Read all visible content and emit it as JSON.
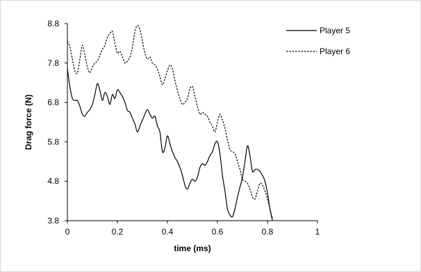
{
  "chart_data": {
    "type": "line",
    "title": "",
    "xlabel": "time (ms)",
    "ylabel": "Drag force (N)",
    "xlim": [
      0,
      1
    ],
    "ylim": [
      3.8,
      8.8
    ],
    "x_ticks": [
      "0",
      "0.2",
      "0.4",
      "0.6",
      "0.8",
      "1"
    ],
    "y_ticks": [
      "3.8",
      "4.8",
      "5.8",
      "6.8",
      "7.8",
      "8.8"
    ],
    "grid": false,
    "legend_position": "top-right",
    "series": [
      {
        "name": "Player 5",
        "style": "solid",
        "color": "#000000",
        "points": [
          [
            0.0,
            7.65
          ],
          [
            0.01,
            7.2
          ],
          [
            0.02,
            6.9
          ],
          [
            0.03,
            6.85
          ],
          [
            0.04,
            6.85
          ],
          [
            0.05,
            6.7
          ],
          [
            0.06,
            6.5
          ],
          [
            0.07,
            6.45
          ],
          [
            0.08,
            6.55
          ],
          [
            0.09,
            6.62
          ],
          [
            0.1,
            6.75
          ],
          [
            0.11,
            7.0
          ],
          [
            0.12,
            7.28
          ],
          [
            0.13,
            7.1
          ],
          [
            0.14,
            6.85
          ],
          [
            0.15,
            7.05
          ],
          [
            0.16,
            6.95
          ],
          [
            0.17,
            6.75
          ],
          [
            0.18,
            7.0
          ],
          [
            0.19,
            6.9
          ],
          [
            0.2,
            7.12
          ],
          [
            0.21,
            7.05
          ],
          [
            0.22,
            6.95
          ],
          [
            0.23,
            6.8
          ],
          [
            0.24,
            6.6
          ],
          [
            0.25,
            6.55
          ],
          [
            0.26,
            6.4
          ],
          [
            0.27,
            6.25
          ],
          [
            0.28,
            6.05
          ],
          [
            0.29,
            6.2
          ],
          [
            0.3,
            6.35
          ],
          [
            0.31,
            6.5
          ],
          [
            0.32,
            6.62
          ],
          [
            0.33,
            6.5
          ],
          [
            0.34,
            6.4
          ],
          [
            0.35,
            6.45
          ],
          [
            0.36,
            6.2
          ],
          [
            0.37,
            6.05
          ],
          [
            0.38,
            5.55
          ],
          [
            0.39,
            5.65
          ],
          [
            0.4,
            5.95
          ],
          [
            0.41,
            5.75
          ],
          [
            0.42,
            5.55
          ],
          [
            0.43,
            5.4
          ],
          [
            0.44,
            5.3
          ],
          [
            0.45,
            5.15
          ],
          [
            0.46,
            4.95
          ],
          [
            0.47,
            4.7
          ],
          [
            0.48,
            4.6
          ],
          [
            0.49,
            4.75
          ],
          [
            0.5,
            4.85
          ],
          [
            0.51,
            4.8
          ],
          [
            0.52,
            4.9
          ],
          [
            0.53,
            5.15
          ],
          [
            0.54,
            5.25
          ],
          [
            0.55,
            5.2
          ],
          [
            0.56,
            5.3
          ],
          [
            0.57,
            5.45
          ],
          [
            0.58,
            5.55
          ],
          [
            0.59,
            5.75
          ],
          [
            0.6,
            5.8
          ],
          [
            0.61,
            5.5
          ],
          [
            0.62,
            4.95
          ],
          [
            0.63,
            4.55
          ],
          [
            0.64,
            4.1
          ],
          [
            0.65,
            3.95
          ],
          [
            0.66,
            3.9
          ],
          [
            0.67,
            4.1
          ],
          [
            0.68,
            4.4
          ],
          [
            0.69,
            4.65
          ],
          [
            0.7,
            4.9
          ],
          [
            0.71,
            5.3
          ],
          [
            0.72,
            5.7
          ],
          [
            0.73,
            5.45
          ],
          [
            0.74,
            5.05
          ],
          [
            0.75,
            5.1
          ],
          [
            0.76,
            5.1
          ],
          [
            0.77,
            5.05
          ],
          [
            0.78,
            4.95
          ],
          [
            0.79,
            4.8
          ],
          [
            0.8,
            4.5
          ],
          [
            0.81,
            4.1
          ],
          [
            0.82,
            3.8
          ]
        ]
      },
      {
        "name": "Player 6",
        "style": "dashed",
        "color": "#000000",
        "points": [
          [
            0.0,
            8.35
          ],
          [
            0.01,
            8.2
          ],
          [
            0.02,
            7.9
          ],
          [
            0.03,
            7.6
          ],
          [
            0.04,
            7.55
          ],
          [
            0.05,
            7.9
          ],
          [
            0.06,
            8.25
          ],
          [
            0.07,
            8.0
          ],
          [
            0.08,
            7.7
          ],
          [
            0.09,
            7.55
          ],
          [
            0.1,
            7.7
          ],
          [
            0.11,
            7.8
          ],
          [
            0.12,
            7.85
          ],
          [
            0.13,
            8.0
          ],
          [
            0.14,
            8.15
          ],
          [
            0.15,
            8.25
          ],
          [
            0.16,
            8.45
          ],
          [
            0.17,
            8.55
          ],
          [
            0.18,
            8.6
          ],
          [
            0.19,
            8.3
          ],
          [
            0.2,
            8.05
          ],
          [
            0.21,
            8.1
          ],
          [
            0.22,
            7.95
          ],
          [
            0.23,
            7.8
          ],
          [
            0.24,
            7.85
          ],
          [
            0.25,
            7.95
          ],
          [
            0.26,
            8.2
          ],
          [
            0.27,
            8.6
          ],
          [
            0.28,
            8.75
          ],
          [
            0.29,
            8.65
          ],
          [
            0.3,
            8.35
          ],
          [
            0.31,
            8.05
          ],
          [
            0.32,
            7.9
          ],
          [
            0.33,
            7.95
          ],
          [
            0.34,
            7.8
          ],
          [
            0.35,
            7.75
          ],
          [
            0.36,
            7.65
          ],
          [
            0.37,
            7.45
          ],
          [
            0.38,
            7.25
          ],
          [
            0.39,
            7.4
          ],
          [
            0.4,
            7.6
          ],
          [
            0.41,
            7.75
          ],
          [
            0.42,
            7.65
          ],
          [
            0.43,
            7.35
          ],
          [
            0.44,
            7.1
          ],
          [
            0.45,
            6.9
          ],
          [
            0.46,
            6.75
          ],
          [
            0.47,
            6.8
          ],
          [
            0.48,
            6.9
          ],
          [
            0.49,
            7.15
          ],
          [
            0.5,
            7.2
          ],
          [
            0.51,
            6.95
          ],
          [
            0.52,
            6.7
          ],
          [
            0.53,
            6.5
          ],
          [
            0.54,
            6.55
          ],
          [
            0.55,
            6.5
          ],
          [
            0.56,
            6.45
          ],
          [
            0.57,
            6.3
          ],
          [
            0.58,
            6.2
          ],
          [
            0.59,
            6.05
          ],
          [
            0.6,
            6.3
          ],
          [
            0.61,
            6.5
          ],
          [
            0.62,
            6.35
          ],
          [
            0.63,
            6.15
          ],
          [
            0.64,
            5.85
          ],
          [
            0.65,
            5.6
          ],
          [
            0.66,
            5.55
          ],
          [
            0.67,
            5.5
          ],
          [
            0.68,
            5.3
          ],
          [
            0.69,
            5.1
          ],
          [
            0.7,
            4.85
          ],
          [
            0.71,
            4.8
          ],
          [
            0.72,
            4.75
          ],
          [
            0.73,
            4.6
          ],
          [
            0.74,
            4.4
          ],
          [
            0.75,
            4.35
          ],
          [
            0.76,
            4.55
          ],
          [
            0.77,
            4.75
          ],
          [
            0.78,
            4.7
          ],
          [
            0.79,
            4.55
          ],
          [
            0.8,
            4.35
          ],
          [
            0.81,
            4.1
          ],
          [
            0.82,
            3.85
          ]
        ]
      }
    ]
  }
}
